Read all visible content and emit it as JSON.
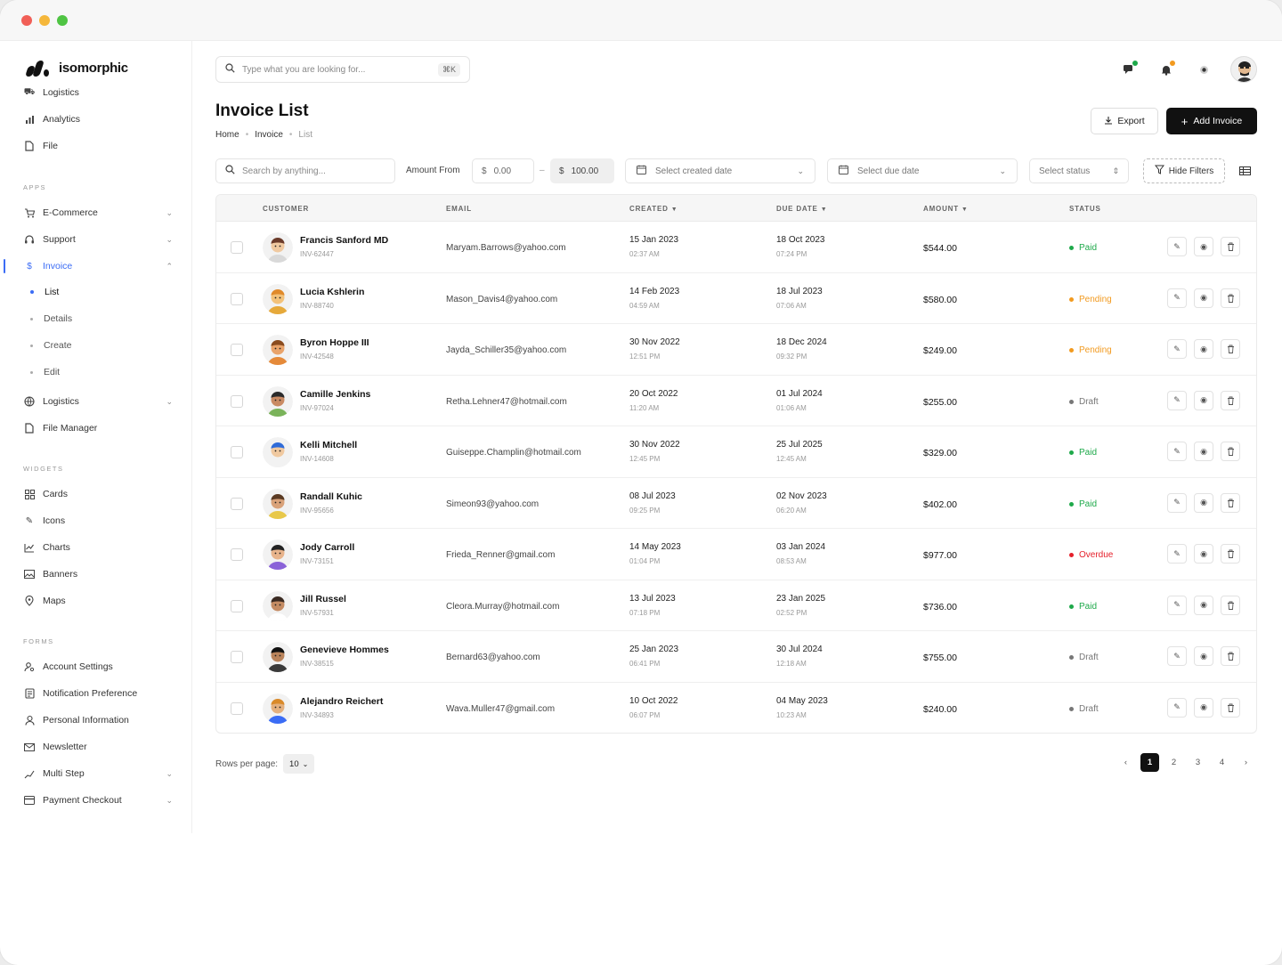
{
  "app": {
    "name": "isomorphic"
  },
  "sidebar": {
    "top_items": [
      {
        "label": "Logistics",
        "icon": "truck-icon"
      },
      {
        "label": "Analytics",
        "icon": "bar-chart-icon"
      },
      {
        "label": "File",
        "icon": "file-icon"
      }
    ],
    "sections": {
      "apps": "APPS",
      "widgets": "WIDGETS",
      "forms": "FORMS"
    },
    "apps": [
      {
        "label": "E-Commerce",
        "icon": "cart-icon",
        "chevron": "down"
      },
      {
        "label": "Support",
        "icon": "headset-icon",
        "chevron": "down"
      },
      {
        "label": "Invoice",
        "icon": "dollar-icon",
        "chevron": "up",
        "active": true
      },
      {
        "label": "Logistics",
        "icon": "globe-icon",
        "chevron": "down"
      },
      {
        "label": "File Manager",
        "icon": "file-icon"
      }
    ],
    "invoice_sub": [
      "List",
      "Details",
      "Create",
      "Edit"
    ],
    "widgets": [
      {
        "label": "Cards",
        "icon": "grid-icon"
      },
      {
        "label": "Icons",
        "icon": "feather-icon"
      },
      {
        "label": "Charts",
        "icon": "line-chart-icon"
      },
      {
        "label": "Banners",
        "icon": "image-icon"
      },
      {
        "label": "Maps",
        "icon": "map-pin-icon"
      }
    ],
    "forms": [
      {
        "label": "Account Settings",
        "icon": "user-gear-icon"
      },
      {
        "label": "Notification Preference",
        "icon": "bell-icon"
      },
      {
        "label": "Personal Information",
        "icon": "user-icon"
      },
      {
        "label": "Newsletter",
        "icon": "mail-icon"
      },
      {
        "label": "Multi Step",
        "icon": "steps-icon",
        "chevron": "down"
      },
      {
        "label": "Payment Checkout",
        "icon": "card-icon",
        "chevron": "down"
      }
    ]
  },
  "header": {
    "search_placeholder": "Type what you are looking for...",
    "search_shortcut": "⌘K"
  },
  "page": {
    "title": "Invoice List",
    "breadcrumb": [
      "Home",
      "Invoice",
      "List"
    ],
    "export_label": "Export",
    "add_label": "Add Invoice"
  },
  "filters": {
    "search_placeholder": "Search by anything...",
    "amount_label": "Amount From",
    "amount_min": "0.00",
    "amount_max": "100.00",
    "currency": "$",
    "created_placeholder": "Select created date",
    "due_placeholder": "Select due date",
    "status_placeholder": "Select status",
    "hide_filters": "Hide Filters"
  },
  "table": {
    "columns": [
      "CUSTOMER",
      "EMAIL",
      "CREATED",
      "DUE DATE",
      "AMOUNT",
      "STATUS"
    ],
    "rows": [
      {
        "name": "Francis Sanford MD",
        "inv": "INV-62447",
        "email": "Maryam.Barrows@yahoo.com",
        "created": "15 Jan 2023",
        "created_time": "02:37 AM",
        "due": "18 Oct 2023",
        "due_time": "07:24 PM",
        "amount": "$544.00",
        "status": "Paid"
      },
      {
        "name": "Lucia Kshlerin",
        "inv": "INV-88740",
        "email": "Mason_Davis4@yahoo.com",
        "created": "14 Feb 2023",
        "created_time": "04:59 AM",
        "due": "18 Jul 2023",
        "due_time": "07:06 AM",
        "amount": "$580.00",
        "status": "Pending"
      },
      {
        "name": "Byron Hoppe III",
        "inv": "INV-42548",
        "email": "Jayda_Schiller35@yahoo.com",
        "created": "30 Nov 2022",
        "created_time": "12:51 PM",
        "due": "18 Dec 2024",
        "due_time": "09:32 PM",
        "amount": "$249.00",
        "status": "Pending"
      },
      {
        "name": "Camille Jenkins",
        "inv": "INV-97024",
        "email": "Retha.Lehner47@hotmail.com",
        "created": "20 Oct 2022",
        "created_time": "11:20 AM",
        "due": "01 Jul 2024",
        "due_time": "01:06 AM",
        "amount": "$255.00",
        "status": "Draft"
      },
      {
        "name": "Kelli Mitchell",
        "inv": "INV-14608",
        "email": "Guiseppe.Champlin@hotmail.com",
        "created": "30 Nov 2022",
        "created_time": "12:45 PM",
        "due": "25 Jul 2025",
        "due_time": "12:45 AM",
        "amount": "$329.00",
        "status": "Paid"
      },
      {
        "name": "Randall Kuhic",
        "inv": "INV-95656",
        "email": "Simeon93@yahoo.com",
        "created": "08 Jul 2023",
        "created_time": "09:25 PM",
        "due": "02 Nov 2023",
        "due_time": "06:20 AM",
        "amount": "$402.00",
        "status": "Paid"
      },
      {
        "name": "Jody Carroll",
        "inv": "INV-73151",
        "email": "Frieda_Renner@gmail.com",
        "created": "14 May 2023",
        "created_time": "01:04 PM",
        "due": "03 Jan 2024",
        "due_time": "08:53 AM",
        "amount": "$977.00",
        "status": "Overdue"
      },
      {
        "name": "Jill Russel",
        "inv": "INV-57931",
        "email": "Cleora.Murray@hotmail.com",
        "created": "13 Jul 2023",
        "created_time": "07:18 PM",
        "due": "23 Jan 2025",
        "due_time": "02:52 PM",
        "amount": "$736.00",
        "status": "Paid"
      },
      {
        "name": "Genevieve Hommes",
        "inv": "INV-38515",
        "email": "Bernard63@yahoo.com",
        "created": "25 Jan 2023",
        "created_time": "06:41 PM",
        "due": "30 Jul 2024",
        "due_time": "12:18 AM",
        "amount": "$755.00",
        "status": "Draft"
      },
      {
        "name": "Alejandro Reichert",
        "inv": "INV-34893",
        "email": "Wava.Muller47@gmail.com",
        "created": "10 Oct 2022",
        "created_time": "06:07 PM",
        "due": "04 May 2023",
        "due_time": "10:23 AM",
        "amount": "$240.00",
        "status": "Draft"
      }
    ]
  },
  "pagination": {
    "rows_label": "Rows per page:",
    "rows_value": "10",
    "pages": [
      "1",
      "2",
      "3",
      "4"
    ],
    "current": "1"
  },
  "colors": {
    "accent": "#3b6cf5",
    "paid": "#1ea94a",
    "pending": "#f29a1f",
    "overdue": "#e5202b",
    "draft": "#777777"
  }
}
